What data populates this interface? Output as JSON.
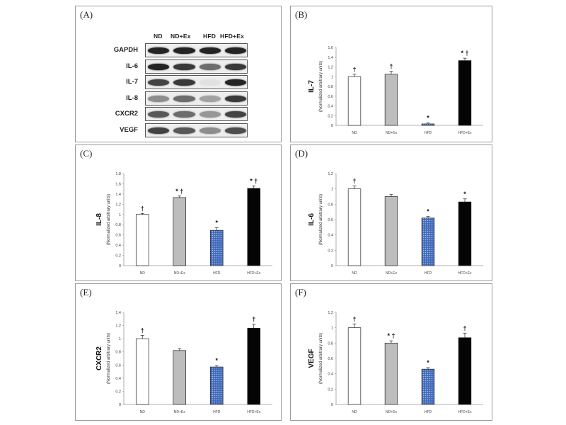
{
  "panels": [
    {
      "letter": "(A)"
    },
    {
      "letter": "(B)"
    },
    {
      "letter": "(C)"
    },
    {
      "letter": "(D)"
    },
    {
      "letter": "(E)"
    },
    {
      "letter": "(F)"
    }
  ],
  "blot": {
    "groups": [
      "ND",
      "ND+Ex",
      "HFD",
      "HFD+Ex"
    ],
    "proteins": [
      {
        "label": "GAPDH",
        "intensity": [
          0.95,
          0.95,
          0.95,
          0.95
        ]
      },
      {
        "label": "IL-6",
        "intensity": [
          0.95,
          0.85,
          0.6,
          0.85
        ]
      },
      {
        "label": "IL-7",
        "intensity": [
          0.8,
          0.85,
          0.05,
          0.95
        ]
      },
      {
        "label": "IL-8",
        "intensity": [
          0.45,
          0.6,
          0.35,
          0.85
        ]
      },
      {
        "label": "CXCR2",
        "intensity": [
          0.7,
          0.6,
          0.4,
          0.8
        ]
      },
      {
        "label": "VEGF",
        "intensity": [
          0.8,
          0.7,
          0.45,
          0.75
        ]
      }
    ]
  },
  "chart_data": [
    {
      "type": "bar",
      "panel": "(B)",
      "categories": [
        "ND",
        "ND+Ex",
        "HFD",
        "HFD+Ex"
      ],
      "values": [
        1.0,
        1.05,
        0.03,
        1.33
      ],
      "errors": [
        0.05,
        0.06,
        0.02,
        0.05
      ],
      "significance": [
        "†",
        "†",
        "*",
        "* †"
      ],
      "ylabel": "IL-7",
      "ysublabel": "(Normalized arbitrary units)",
      "ylim": [
        0,
        1.6
      ],
      "yticks": [
        "0",
        "0.2",
        "0.4",
        "0.6",
        "0.8",
        "1",
        "1.2",
        "1.4",
        "1.6"
      ],
      "bar_fills": [
        "white",
        "gray",
        "blue-dotted",
        "black"
      ]
    },
    {
      "type": "bar",
      "panel": "(C)",
      "categories": [
        "ND",
        "ND+Ex",
        "HFD",
        "HFD+Ex"
      ],
      "values": [
        1.0,
        1.33,
        0.69,
        1.51
      ],
      "errors": [
        0.02,
        0.03,
        0.05,
        0.05
      ],
      "significance": [
        "†",
        "* †",
        "*",
        "* †"
      ],
      "ylabel": "IL-8",
      "ysublabel": "(Normalized arbitrary units)",
      "ylim": [
        0,
        1.8
      ],
      "yticks": [
        "0",
        "0.2",
        "0.4",
        "0.6",
        "0.8",
        "1",
        "1.2",
        "1.4",
        "1.6",
        "1.8"
      ],
      "bar_fills": [
        "white",
        "gray",
        "blue-dotted",
        "black"
      ]
    },
    {
      "type": "bar",
      "panel": "(D)",
      "categories": [
        "ND",
        "ND+Ex",
        "HFD",
        "HFD+Ex"
      ],
      "values": [
        1.0,
        0.9,
        0.62,
        0.83
      ],
      "errors": [
        0.04,
        0.03,
        0.02,
        0.04
      ],
      "significance": [
        "†",
        "",
        "*",
        "*"
      ],
      "ylabel": "IL-6",
      "ysublabel": "(Normalized arbitrary units)",
      "ylim": [
        0,
        1.2
      ],
      "yticks": [
        "0",
        "0.2",
        "0.4",
        "0.6",
        "0.8",
        "1",
        "1.2"
      ],
      "bar_fills": [
        "white",
        "gray",
        "blue-dotted",
        "black"
      ]
    },
    {
      "type": "bar",
      "panel": "(E)",
      "categories": [
        "ND",
        "ND+Ex",
        "HFD",
        "HFD+Ex"
      ],
      "values": [
        1.0,
        0.82,
        0.57,
        1.16
      ],
      "errors": [
        0.05,
        0.03,
        0.02,
        0.06
      ],
      "significance": [
        "†",
        "",
        "*",
        "†"
      ],
      "ylabel": "CXCR2",
      "ysublabel": "(Normalized arbitrary units)",
      "ylim": [
        0,
        1.4
      ],
      "yticks": [
        "0",
        "0.2",
        "0.4",
        "0.6",
        "0.8",
        "1",
        "1.2",
        "1.4"
      ],
      "bar_fills": [
        "white",
        "gray",
        "blue-dotted",
        "black"
      ]
    },
    {
      "type": "bar",
      "panel": "(F)",
      "categories": [
        "ND",
        "ND+Ex",
        "HFD",
        "HFD+Ex"
      ],
      "values": [
        1.0,
        0.8,
        0.46,
        0.87
      ],
      "errors": [
        0.05,
        0.03,
        0.02,
        0.06
      ],
      "significance": [
        "†",
        "* †",
        "*",
        "†"
      ],
      "ylabel": "VEGF",
      "ysublabel": "(Normalized arbitrary units)",
      "ylim": [
        0,
        1.2
      ],
      "yticks": [
        "0",
        "0.2",
        "0.4",
        "0.6",
        "0.8",
        "1",
        "1.2"
      ],
      "bar_fills": [
        "white",
        "gray",
        "blue-dotted",
        "black"
      ]
    }
  ]
}
